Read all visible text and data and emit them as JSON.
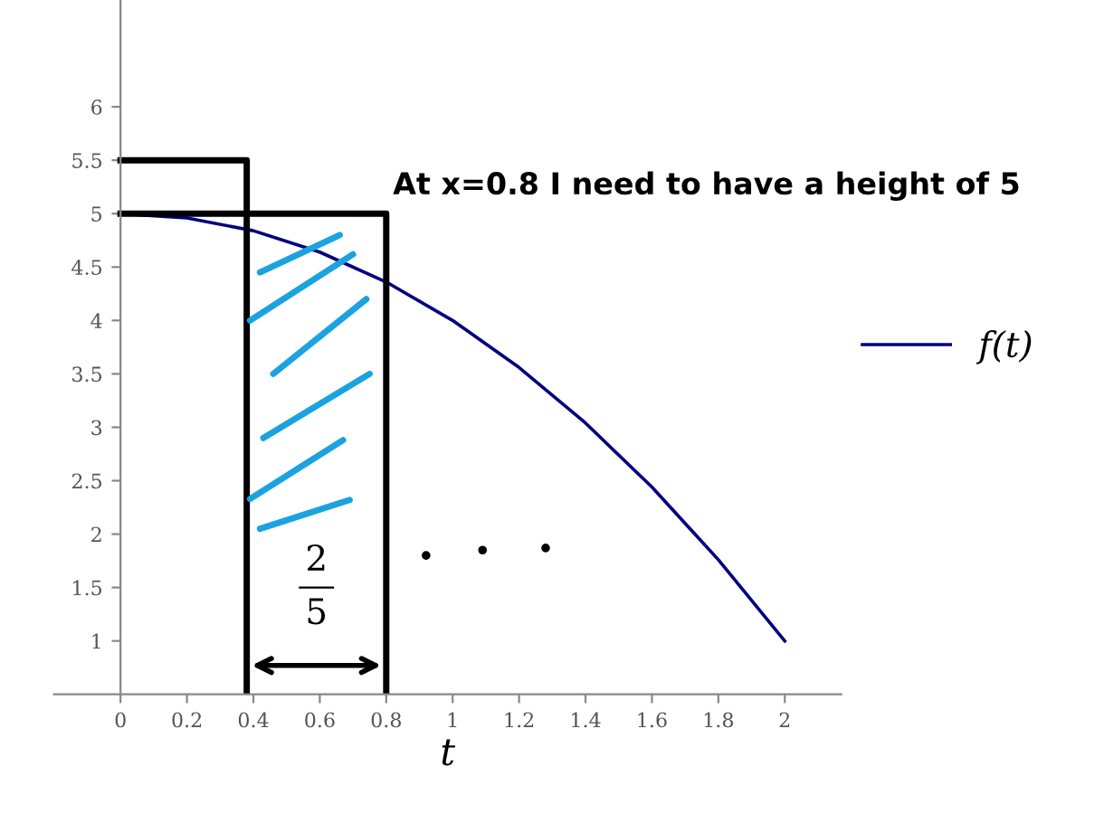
{
  "chart_data": {
    "type": "line",
    "xlabel": "t",
    "legend": "right",
    "grid": false,
    "x": [
      0,
      0.2,
      0.4,
      0.6,
      0.8,
      1.0,
      1.2,
      1.4,
      1.6,
      1.8,
      2.0
    ],
    "series": [
      {
        "name": "f(t)",
        "color": "#000080",
        "values": [
          5,
          4.96,
          4.84,
          4.64,
          4.36,
          4,
          3.56,
          3.04,
          2.44,
          1.76,
          1.0
        ]
      },
      {
        "color": "#000000",
        "x": [
          0,
          0.38,
          0.38
        ],
        "values": [
          5.5,
          5.5,
          0.5
        ]
      },
      {
        "color": "#000000",
        "x": [
          0,
          0.8,
          0.8
        ],
        "values": [
          5,
          5,
          0.5
        ]
      },
      {
        "type": "scatter",
        "color": "#000000",
        "x": [
          0.92,
          1.09,
          1.28
        ],
        "values": [
          1.8,
          1.85,
          1.87
        ]
      }
    ],
    "annotations": [
      {
        "text": "At x=0.8 I need to have a height of 5",
        "x": 0.8,
        "y": 5
      },
      "2",
      "5"
    ],
    "xlim": [
      -0.2,
      2.17
    ],
    "ylim": [
      0.5,
      7
    ],
    "xticks": [
      0,
      0.2,
      0.4,
      0.6,
      0.8,
      1,
      1.2,
      1.4,
      1.6,
      1.8,
      2
    ],
    "yticks": [
      1,
      1.5,
      2,
      2.5,
      3,
      3.5,
      4,
      4.5,
      5,
      5.5,
      6
    ]
  }
}
